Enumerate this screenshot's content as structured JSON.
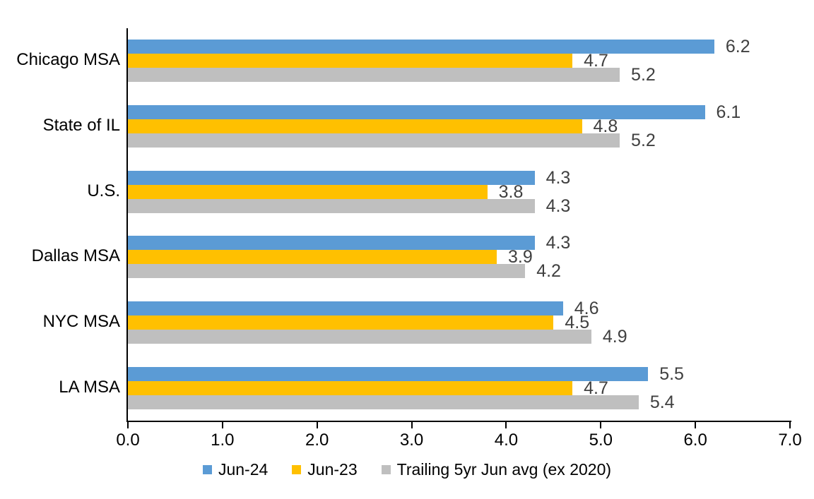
{
  "chart_data": {
    "type": "bar",
    "orientation": "horizontal",
    "title": "",
    "categories": [
      "Chicago MSA",
      "State of IL",
      "U.S.",
      "Dallas MSA",
      "NYC MSA",
      "LA MSA"
    ],
    "series": [
      {
        "name": "Jun-24",
        "color": "#5B9BD5",
        "values": [
          6.2,
          6.1,
          4.3,
          4.3,
          4.6,
          5.5
        ]
      },
      {
        "name": "Jun-23",
        "color": "#FFC000",
        "values": [
          4.7,
          4.8,
          3.8,
          3.9,
          4.5,
          4.7
        ]
      },
      {
        "name": "Trailing 5yr Jun avg (ex 2020)",
        "color": "#BFBFBF",
        "values": [
          5.2,
          5.2,
          4.3,
          4.2,
          4.9,
          5.4
        ]
      }
    ],
    "xlim": [
      0.0,
      7.0
    ],
    "x_tick_labels": [
      "0.0",
      "1.0",
      "2.0",
      "3.0",
      "4.0",
      "5.0",
      "6.0",
      "7.0"
    ],
    "xlabel": "",
    "ylabel": "",
    "grid": false,
    "legend_position": "bottom",
    "value_label_color": "#404040",
    "axis_color": "#000000",
    "value_label_decimals": 1
  }
}
